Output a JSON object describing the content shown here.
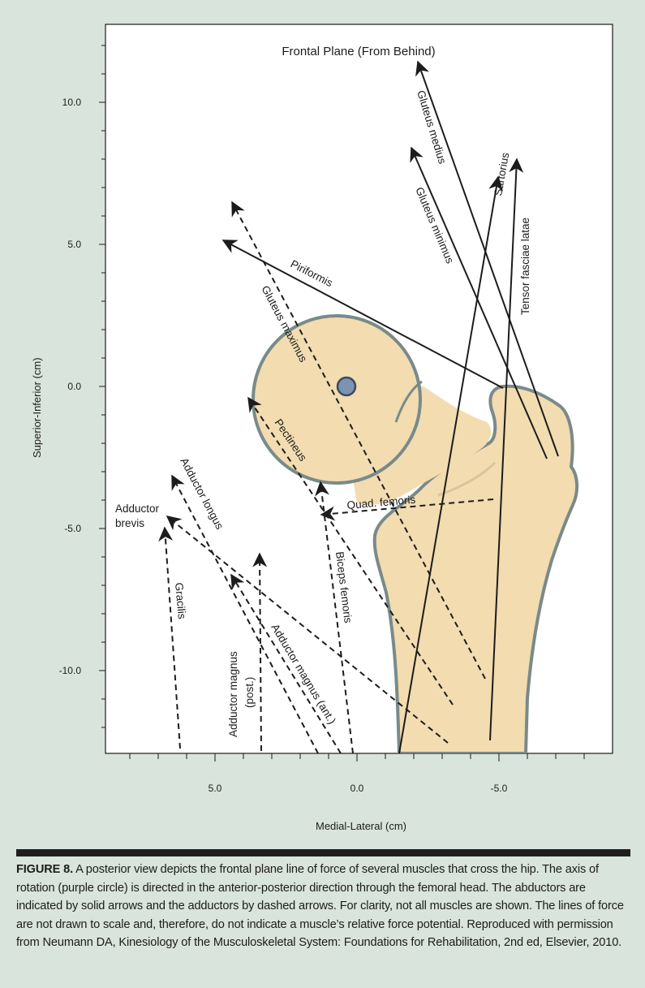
{
  "diagram": {
    "title": "Frontal Plane (From Behind)",
    "y_axis": {
      "title": "Superior-Inferior (cm)",
      "ticks": [
        "10.0",
        "5.0",
        "0.0",
        "-5.0",
        "-10.0"
      ]
    },
    "x_axis": {
      "title": "Medial-Lateral (cm)",
      "ticks": [
        "5.0",
        "0.0",
        "-5.0"
      ]
    },
    "muscles": {
      "gluteus_medius": "Gluteus medius",
      "gluteus_minimus": "Gluteus minimus",
      "sartorius": "Sartorius",
      "tensor_fasciae_latae": "Tensor fasciae latae",
      "piriformis": "Piriformis",
      "gluteus_maximus": "Gluteus maximus",
      "pectineus": "Pectineus",
      "quad_femoris": "Quad. femoris",
      "adductor_longus": "Adductor longus",
      "adductor_brevis_1": "Adductor",
      "adductor_brevis_2": "brevis",
      "gracilis": "Gracilis",
      "biceps_femoris": "Biceps femoris",
      "adductor_magnus_ant": "Adductor magnus (ant.)",
      "adductor_magnus_post_1": "Adductor magnus",
      "adductor_magnus_post_2": "(post.)"
    },
    "colors": {
      "bone_fill": "#f2dcb0",
      "bone_outline": "#7a8a8a",
      "axis_circle": "#7d93b4",
      "background": "#d9e4dc",
      "plot_area": "#ffffff"
    }
  },
  "caption": {
    "lead": "FIGURE 8.",
    "text": " A posterior view depicts the frontal plane line of force of several muscles that cross the hip. The axis of rotation (purple circle) is directed in the anterior-posterior direction through the femoral head. The abductors are indicated by solid arrows and the adductors by dashed arrows. For clarity, not all muscles are shown. The lines of force are not drawn to scale and, therefore, do not indicate a muscle’s relative force potential. Reproduced with permission from Neumann DA, Kinesiology of the Musculoskeletal System: Foundations for Rehabilitation, 2nd ed, Elsevier, 2010."
  }
}
